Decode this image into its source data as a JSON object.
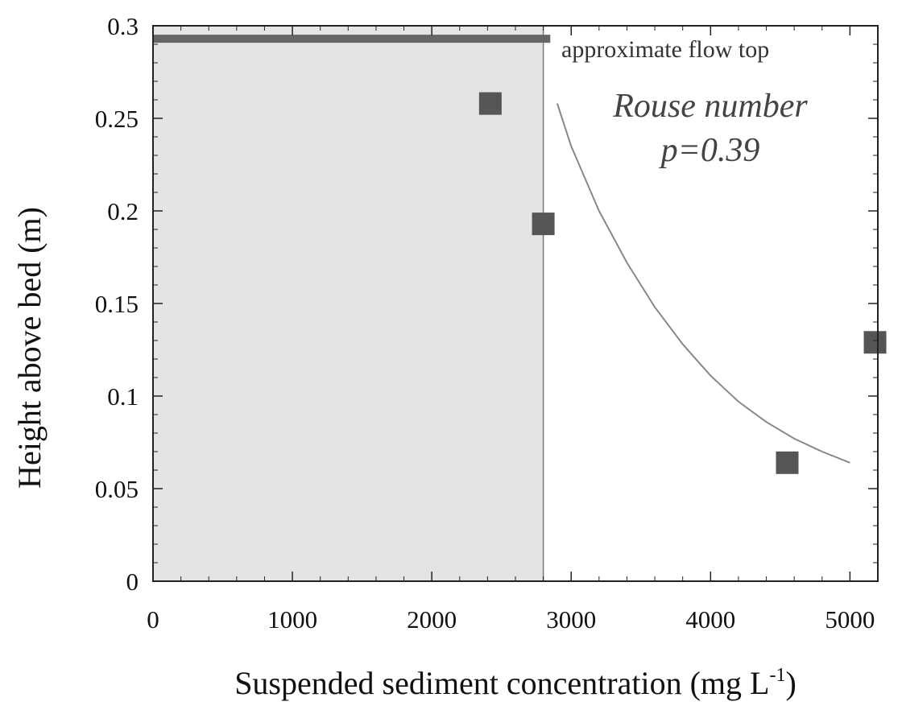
{
  "chart_data": {
    "type": "scatter",
    "xlabel": "Suspended sediment concentration (mg L",
    "xlabel_superscript": "-1",
    "xlabel_suffix": ")",
    "ylabel": "Height above bed (m)",
    "xlim": [
      0,
      5200
    ],
    "ylim": [
      0,
      0.3
    ],
    "xticks": [
      0,
      1000,
      2000,
      3000,
      4000,
      5000
    ],
    "yticks": [
      0,
      0.05,
      0.1,
      0.15,
      0.2,
      0.25,
      0.3
    ],
    "xtick_labels": [
      "0",
      "1000",
      "2000",
      "3000",
      "4000",
      "5000"
    ],
    "ytick_labels": [
      "0",
      "0.05",
      "0.1",
      "0.15",
      "0.2",
      "0.25",
      "0.3"
    ],
    "grid": false,
    "series": [
      {
        "values": [
          {
            "x": 2420,
            "y": 0.258
          },
          {
            "x": 2800,
            "y": 0.193
          },
          {
            "x": 4550,
            "y": 0.064
          },
          {
            "x": 5180,
            "y": 0.129
          }
        ],
        "color": "#555555",
        "marker": "square"
      }
    ],
    "fit_curve": {
      "points": [
        {
          "x": 2900,
          "y": 0.258
        },
        {
          "x": 3000,
          "y": 0.235
        },
        {
          "x": 3200,
          "y": 0.2
        },
        {
          "x": 3400,
          "y": 0.172
        },
        {
          "x": 3600,
          "y": 0.148
        },
        {
          "x": 3800,
          "y": 0.128
        },
        {
          "x": 4000,
          "y": 0.111
        },
        {
          "x": 4200,
          "y": 0.097
        },
        {
          "x": 4400,
          "y": 0.086
        },
        {
          "x": 4600,
          "y": 0.077
        },
        {
          "x": 4800,
          "y": 0.07
        },
        {
          "x": 5000,
          "y": 0.064
        }
      ],
      "color": "#888888"
    },
    "flow_top": {
      "y": 0.293,
      "x_end": 2850,
      "color": "#666666"
    },
    "shaded_region": {
      "x_start": 0,
      "x_end": 2800,
      "color": "#e4e4e4"
    },
    "annotations": {
      "flow_top_label": "approximate flow top",
      "rouse_line1": "Rouse number",
      "rouse_line2": "p=0.39"
    }
  }
}
